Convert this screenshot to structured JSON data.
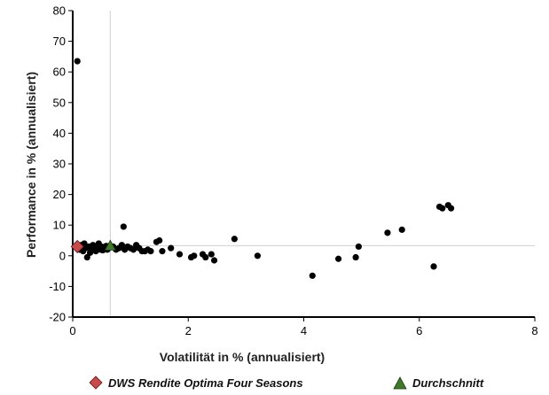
{
  "chart_data": {
    "type": "scatter",
    "title": "",
    "xlabel": "Volatilität in % (annualisiert)",
    "ylabel": "Performance in % (annualisiert)",
    "xlim": [
      0,
      8
    ],
    "ylim": [
      -20,
      80
    ],
    "x_ticks": [
      0,
      2,
      4,
      6,
      8
    ],
    "y_ticks": [
      -20,
      -10,
      0,
      10,
      20,
      30,
      40,
      50,
      60,
      70,
      80
    ],
    "grid": false,
    "legend_position": "bottom",
    "reference_lines": {
      "x": 0.65,
      "y": 3.3
    },
    "series": [
      {
        "name": "",
        "color": "#000000",
        "marker": "circle",
        "points": [
          [
            0.08,
            63.5
          ],
          [
            0.05,
            3.0
          ],
          [
            0.12,
            2.0
          ],
          [
            0.15,
            3.5
          ],
          [
            0.18,
            1.5
          ],
          [
            0.2,
            4.0
          ],
          [
            0.22,
            2.5
          ],
          [
            0.25,
            -0.5
          ],
          [
            0.28,
            3.0
          ],
          [
            0.3,
            1.0
          ],
          [
            0.32,
            2.0
          ],
          [
            0.35,
            3.5
          ],
          [
            0.38,
            2.5
          ],
          [
            0.4,
            1.5
          ],
          [
            0.42,
            3.0
          ],
          [
            0.45,
            4.0
          ],
          [
            0.48,
            2.0
          ],
          [
            0.5,
            3.0
          ],
          [
            0.52,
            1.8
          ],
          [
            0.55,
            2.5
          ],
          [
            0.58,
            3.2
          ],
          [
            0.6,
            2.0
          ],
          [
            0.7,
            3.0
          ],
          [
            0.75,
            2.0
          ],
          [
            0.8,
            2.5
          ],
          [
            0.85,
            3.5
          ],
          [
            0.88,
            9.5
          ],
          [
            0.9,
            2.0
          ],
          [
            0.95,
            3.0
          ],
          [
            1.0,
            2.5
          ],
          [
            1.05,
            2.0
          ],
          [
            1.1,
            3.5
          ],
          [
            1.15,
            2.5
          ],
          [
            1.2,
            1.5
          ],
          [
            1.25,
            1.5
          ],
          [
            1.3,
            2.0
          ],
          [
            1.35,
            1.5
          ],
          [
            1.45,
            4.5
          ],
          [
            1.5,
            5.0
          ],
          [
            1.55,
            1.5
          ],
          [
            1.7,
            2.5
          ],
          [
            1.85,
            0.5
          ],
          [
            2.05,
            -0.5
          ],
          [
            2.1,
            0.0
          ],
          [
            2.25,
            0.5
          ],
          [
            2.3,
            -0.5
          ],
          [
            2.4,
            0.5
          ],
          [
            2.45,
            -1.5
          ],
          [
            2.8,
            5.5
          ],
          [
            3.2,
            0.0
          ],
          [
            4.15,
            -6.5
          ],
          [
            4.6,
            -1.0
          ],
          [
            4.9,
            -0.5
          ],
          [
            4.95,
            3.0
          ],
          [
            5.45,
            7.5
          ],
          [
            5.7,
            8.5
          ],
          [
            6.25,
            -3.5
          ],
          [
            6.35,
            16.0
          ],
          [
            6.4,
            15.5
          ],
          [
            6.5,
            16.5
          ],
          [
            6.55,
            15.5
          ]
        ]
      },
      {
        "name": "DWS Rendite Optima Four Seasons",
        "color": "#c84a4a",
        "marker": "diamond",
        "points": [
          [
            0.08,
            3.0
          ]
        ]
      },
      {
        "name": "Durchschnitt",
        "color": "#3d7a2a",
        "marker": "triangle",
        "points": [
          [
            0.65,
            3.3
          ]
        ]
      }
    ]
  }
}
